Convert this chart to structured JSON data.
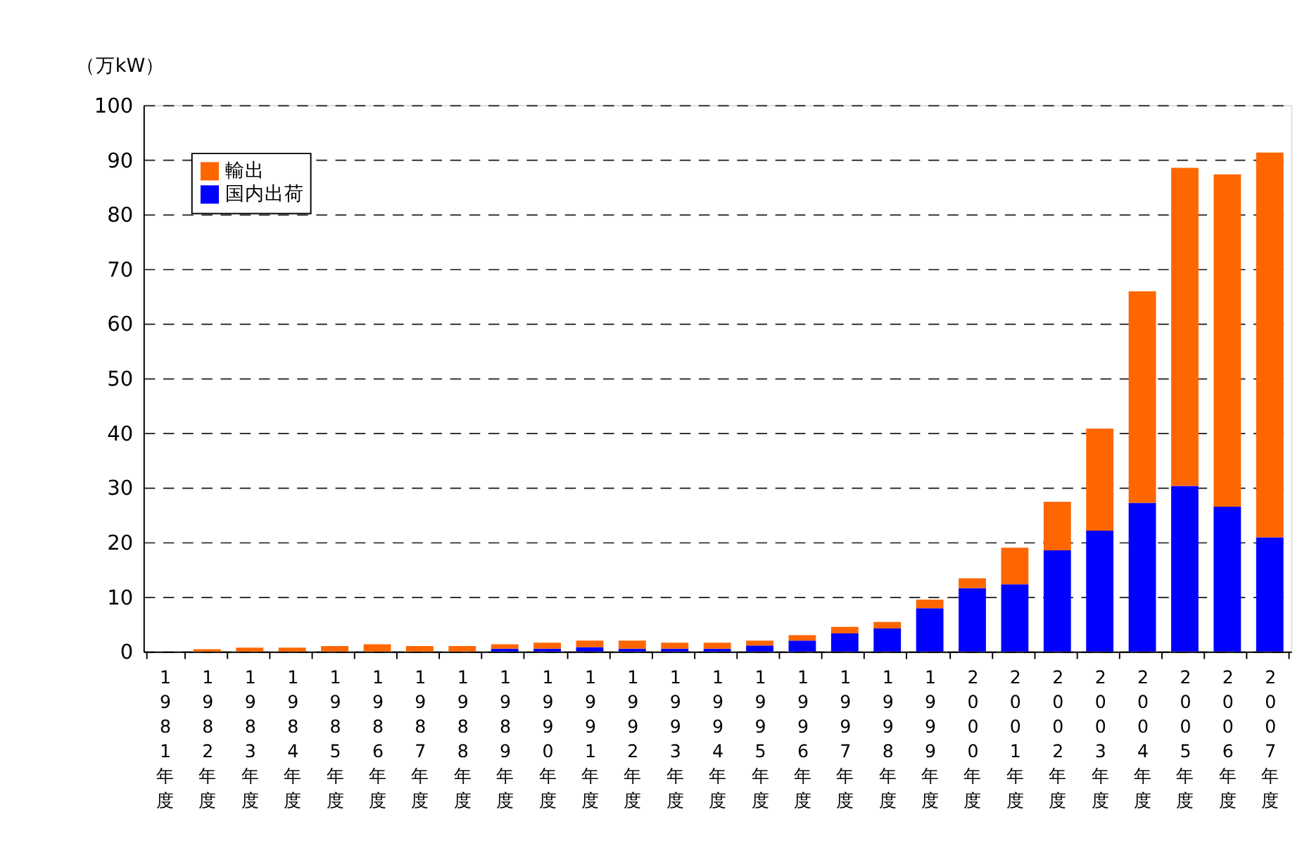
{
  "chart_data": {
    "type": "bar",
    "stacked": true,
    "ylabel": "（万kW）",
    "categories": [
      "1981年度",
      "1982年度",
      "1983年度",
      "1984年度",
      "1985年度",
      "1986年度",
      "1987年度",
      "1988年度",
      "1989年度",
      "1990年度",
      "1991年度",
      "1992年度",
      "1993年度",
      "1994年度",
      "1995年度",
      "1996年度",
      "1997年度",
      "1998年度",
      "1999年度",
      "2000年度",
      "2001年度",
      "2002年度",
      "2003年度",
      "2004年度",
      "2005年度",
      "2006年度",
      "2007年度"
    ],
    "series": [
      {
        "name": "国内出荷",
        "color": "#0000ff",
        "values": [
          0,
          0,
          0,
          0,
          0,
          0,
          0,
          0,
          0.5,
          0.5,
          0.8,
          0.5,
          0.5,
          0.5,
          1.1,
          2.0,
          3.3,
          4.2,
          7.9,
          11.6,
          12.3,
          18.5,
          22.1,
          27.2,
          30.3,
          26.5,
          20.9
        ]
      },
      {
        "name": "輸出",
        "color": "#ff6600",
        "values": [
          0,
          0.4,
          0.7,
          0.7,
          1.0,
          1.3,
          1.0,
          1.0,
          0.8,
          1.1,
          1.2,
          1.5,
          1.1,
          1.1,
          0.9,
          1.0,
          1.2,
          1.2,
          1.6,
          1.8,
          6.7,
          8.9,
          18.7,
          38.7,
          58.2,
          60.8,
          70.4
        ]
      }
    ],
    "ylim": [
      0,
      100
    ],
    "yticks": [
      0,
      10,
      20,
      30,
      40,
      50,
      60,
      70,
      80,
      90,
      100
    ],
    "grid": "y",
    "legend": "top left"
  }
}
